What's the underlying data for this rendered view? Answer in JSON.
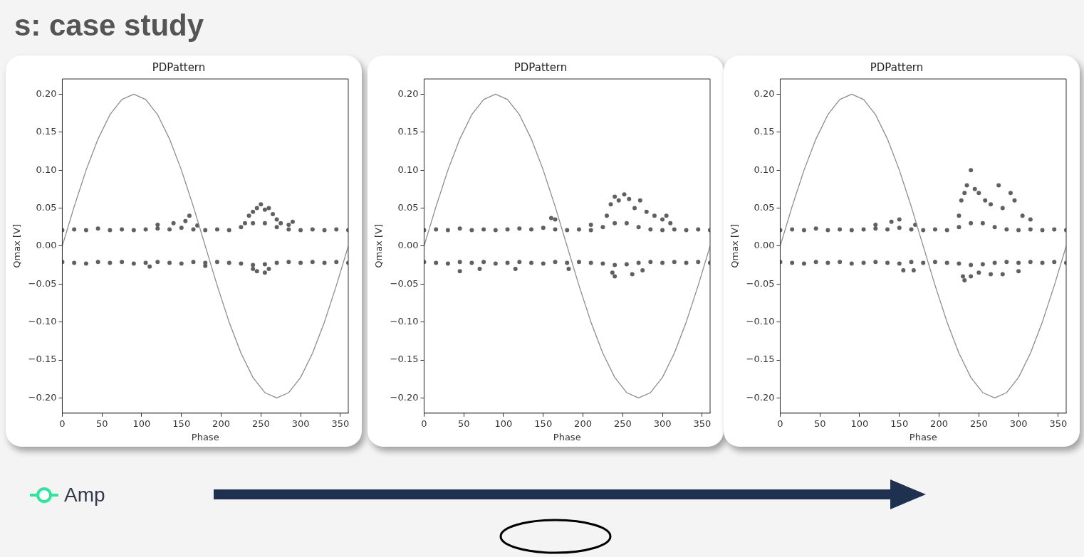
{
  "chart_data": [
    {
      "type": "scatter",
      "title": "PDPattern",
      "xlabel": "Phase",
      "ylabel": "Qmax [V]",
      "annotations": [
        "s: case study",
        "Amp"
      ],
      "marker": "circle",
      "grid": false,
      "legend": false,
      "xlim": [
        0,
        360
      ],
      "xticks": [
        0,
        50,
        100,
        150,
        200,
        250,
        300,
        350
      ],
      "ylim": [
        -0.22,
        0.22
      ],
      "yticks": [
        {
          "value": -0.2,
          "label": "−0.20"
        },
        {
          "value": -0.15,
          "label": "−0.15"
        },
        {
          "value": -0.1,
          "label": "−0.10"
        },
        {
          "value": -0.05,
          "label": "−0.05"
        },
        {
          "value": 0,
          "label": "0.00"
        },
        {
          "value": 0.05,
          "label": "0.05"
        },
        {
          "value": 0.1,
          "label": "0.10"
        },
        {
          "value": 0.15,
          "label": "0.15"
        },
        {
          "value": 0.2,
          "label": "0.20"
        }
      ],
      "series": [
        {
          "type": "line",
          "marker": "none",
          "color": "#8c8c8c",
          "x": [
            0,
            15,
            30,
            45,
            60,
            75,
            90,
            105,
            120,
            135,
            150,
            165,
            180,
            195,
            210,
            225,
            240,
            255,
            270,
            285,
            300,
            315,
            330,
            345,
            360
          ],
          "values": [
            0,
            0.052,
            0.1,
            0.141,
            0.173,
            0.193,
            0.2,
            0.193,
            0.173,
            0.141,
            0.1,
            0.052,
            0,
            -0.052,
            -0.1,
            -0.141,
            -0.173,
            -0.193,
            -0.2,
            -0.193,
            -0.173,
            -0.141,
            -0.1,
            -0.052,
            0
          ]
        },
        {
          "color": "#606060",
          "x": [
            0,
            15,
            30,
            45,
            60,
            75,
            90,
            105,
            120,
            135,
            150,
            165,
            180,
            195,
            210,
            225,
            240,
            255,
            270,
            285,
            300,
            315,
            330,
            345,
            360,
            120,
            140,
            155,
            160,
            170,
            230,
            235,
            240,
            245,
            250,
            255,
            260,
            265,
            270,
            275,
            285,
            290
          ],
          "values": [
            0.021,
            0.022,
            0.021,
            0.023,
            0.021,
            0.022,
            0.021,
            0.022,
            0.023,
            0.022,
            0.024,
            0.022,
            0.021,
            0.022,
            0.021,
            0.025,
            0.03,
            0.03,
            0.025,
            0.022,
            0.021,
            0.022,
            0.021,
            0.022,
            0.021,
            0.028,
            0.03,
            0.033,
            0.04,
            0.027,
            0.03,
            0.04,
            0.045,
            0.05,
            0.055,
            0.048,
            0.05,
            0.042,
            0.035,
            0.03,
            0.028,
            0.032
          ]
        },
        {
          "color": "#606060",
          "x": [
            0,
            15,
            30,
            45,
            60,
            75,
            90,
            105,
            120,
            135,
            150,
            165,
            180,
            195,
            210,
            225,
            240,
            255,
            270,
            285,
            300,
            315,
            330,
            345,
            360,
            110,
            180,
            240,
            245,
            255,
            260
          ],
          "values": [
            -0.021,
            -0.022,
            -0.023,
            -0.021,
            -0.022,
            -0.021,
            -0.023,
            -0.022,
            -0.021,
            -0.022,
            -0.023,
            -0.021,
            -0.022,
            -0.021,
            -0.022,
            -0.023,
            -0.025,
            -0.024,
            -0.022,
            -0.021,
            -0.022,
            -0.021,
            -0.022,
            -0.021,
            -0.022,
            -0.027,
            -0.026,
            -0.03,
            -0.033,
            -0.035,
            -0.03
          ]
        }
      ]
    },
    {
      "type": "scatter",
      "title": "PDPattern",
      "xlabel": "Phase",
      "ylabel": "Qmax [V]",
      "marker": "circle",
      "grid": false,
      "legend": false,
      "xlim": [
        0,
        360
      ],
      "xticks": [
        0,
        50,
        100,
        150,
        200,
        250,
        300,
        350
      ],
      "ylim": [
        -0.22,
        0.22
      ],
      "yticks": [
        {
          "value": -0.2,
          "label": "−0.20"
        },
        {
          "value": -0.15,
          "label": "−0.15"
        },
        {
          "value": -0.1,
          "label": "−0.10"
        },
        {
          "value": -0.05,
          "label": "−0.05"
        },
        {
          "value": 0,
          "label": "0.00"
        },
        {
          "value": 0.05,
          "label": "0.05"
        },
        {
          "value": 0.1,
          "label": "0.10"
        },
        {
          "value": 0.15,
          "label": "0.15"
        },
        {
          "value": 0.2,
          "label": "0.20"
        }
      ],
      "series": [
        {
          "type": "line",
          "marker": "none",
          "color": "#8c8c8c",
          "x": [
            0,
            15,
            30,
            45,
            60,
            75,
            90,
            105,
            120,
            135,
            150,
            165,
            180,
            195,
            210,
            225,
            240,
            255,
            270,
            285,
            300,
            315,
            330,
            345,
            360
          ],
          "values": [
            0,
            0.052,
            0.1,
            0.141,
            0.173,
            0.193,
            0.2,
            0.193,
            0.173,
            0.141,
            0.1,
            0.052,
            0,
            -0.052,
            -0.1,
            -0.141,
            -0.173,
            -0.193,
            -0.2,
            -0.193,
            -0.173,
            -0.141,
            -0.1,
            -0.052,
            0
          ]
        },
        {
          "color": "#606060",
          "x": [
            0,
            15,
            30,
            45,
            60,
            75,
            90,
            105,
            120,
            135,
            150,
            165,
            180,
            195,
            210,
            225,
            240,
            255,
            270,
            285,
            300,
            315,
            330,
            345,
            360,
            160,
            165,
            210,
            230,
            235,
            240,
            245,
            252,
            258,
            265,
            272,
            280,
            290,
            300,
            305,
            310
          ],
          "values": [
            0.021,
            0.022,
            0.021,
            0.023,
            0.021,
            0.022,
            0.021,
            0.022,
            0.023,
            0.022,
            0.024,
            0.022,
            0.021,
            0.022,
            0.021,
            0.025,
            0.03,
            0.03,
            0.025,
            0.022,
            0.021,
            0.022,
            0.021,
            0.022,
            0.021,
            0.037,
            0.035,
            0.028,
            0.04,
            0.055,
            0.065,
            0.06,
            0.068,
            0.062,
            0.05,
            0.06,
            0.045,
            0.04,
            0.035,
            0.04,
            0.03
          ]
        },
        {
          "color": "#606060",
          "x": [
            0,
            15,
            30,
            45,
            60,
            75,
            90,
            105,
            120,
            135,
            150,
            165,
            180,
            195,
            210,
            225,
            240,
            255,
            270,
            285,
            300,
            315,
            330,
            345,
            360,
            45,
            70,
            115,
            182,
            237,
            240,
            262,
            275
          ],
          "values": [
            -0.021,
            -0.022,
            -0.023,
            -0.021,
            -0.022,
            -0.021,
            -0.023,
            -0.022,
            -0.021,
            -0.022,
            -0.023,
            -0.021,
            -0.022,
            -0.021,
            -0.022,
            -0.023,
            -0.025,
            -0.024,
            -0.022,
            -0.021,
            -0.022,
            -0.021,
            -0.022,
            -0.021,
            -0.022,
            -0.033,
            -0.03,
            -0.03,
            -0.03,
            -0.035,
            -0.04,
            -0.037,
            -0.032
          ]
        }
      ]
    },
    {
      "type": "scatter",
      "title": "PDPattern",
      "xlabel": "Phase",
      "ylabel": "Qmax [V]",
      "marker": "circle",
      "grid": false,
      "legend": false,
      "xlim": [
        0,
        360
      ],
      "xticks": [
        0,
        50,
        100,
        150,
        200,
        250,
        300,
        350
      ],
      "ylim": [
        -0.22,
        0.22
      ],
      "yticks": [
        {
          "value": -0.2,
          "label": "−0.20"
        },
        {
          "value": -0.15,
          "label": "−0.15"
        },
        {
          "value": -0.1,
          "label": "−0.10"
        },
        {
          "value": -0.05,
          "label": "−0.05"
        },
        {
          "value": 0,
          "label": "0.00"
        },
        {
          "value": 0.05,
          "label": "0.05"
        },
        {
          "value": 0.1,
          "label": "0.10"
        },
        {
          "value": 0.15,
          "label": "0.15"
        },
        {
          "value": 0.2,
          "label": "0.20"
        }
      ],
      "series": [
        {
          "type": "line",
          "marker": "none",
          "color": "#8c8c8c",
          "x": [
            0,
            15,
            30,
            45,
            60,
            75,
            90,
            105,
            120,
            135,
            150,
            165,
            180,
            195,
            210,
            225,
            240,
            255,
            270,
            285,
            300,
            315,
            330,
            345,
            360
          ],
          "values": [
            0,
            0.052,
            0.1,
            0.141,
            0.173,
            0.193,
            0.2,
            0.193,
            0.173,
            0.141,
            0.1,
            0.052,
            0,
            -0.052,
            -0.1,
            -0.141,
            -0.173,
            -0.193,
            -0.2,
            -0.193,
            -0.173,
            -0.141,
            -0.1,
            -0.052,
            0
          ]
        },
        {
          "color": "#606060",
          "x": [
            0,
            15,
            30,
            45,
            60,
            75,
            90,
            105,
            120,
            135,
            150,
            165,
            180,
            195,
            210,
            225,
            240,
            255,
            270,
            285,
            300,
            315,
            330,
            345,
            360,
            120,
            140,
            150,
            170,
            225,
            228,
            232,
            235,
            240,
            245,
            250,
            258,
            265,
            275,
            280,
            290,
            295,
            305,
            315
          ],
          "values": [
            0.021,
            0.022,
            0.021,
            0.023,
            0.021,
            0.022,
            0.021,
            0.022,
            0.023,
            0.022,
            0.024,
            0.022,
            0.021,
            0.022,
            0.021,
            0.025,
            0.03,
            0.03,
            0.025,
            0.022,
            0.021,
            0.022,
            0.021,
            0.022,
            0.021,
            0.028,
            0.032,
            0.035,
            0.028,
            0.04,
            0.06,
            0.07,
            0.08,
            0.1,
            0.075,
            0.07,
            0.06,
            0.055,
            0.08,
            0.05,
            0.07,
            0.06,
            0.04,
            0.035
          ]
        },
        {
          "color": "#606060",
          "x": [
            0,
            15,
            30,
            45,
            60,
            75,
            90,
            105,
            120,
            135,
            150,
            165,
            180,
            195,
            210,
            225,
            240,
            255,
            270,
            285,
            300,
            315,
            330,
            345,
            360,
            155,
            168,
            230,
            232,
            240,
            250,
            265,
            280,
            300
          ],
          "values": [
            -0.021,
            -0.022,
            -0.023,
            -0.021,
            -0.022,
            -0.021,
            -0.023,
            -0.022,
            -0.021,
            -0.022,
            -0.023,
            -0.021,
            -0.022,
            -0.021,
            -0.022,
            -0.023,
            -0.025,
            -0.024,
            -0.022,
            -0.021,
            -0.022,
            -0.021,
            -0.022,
            -0.021,
            -0.022,
            -0.032,
            -0.032,
            -0.04,
            -0.045,
            -0.04,
            -0.035,
            -0.037,
            -0.037,
            -0.033
          ]
        }
      ]
    }
  ]
}
